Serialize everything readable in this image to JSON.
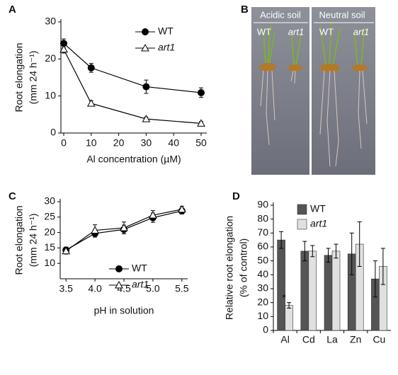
{
  "chart_data": [
    {
      "type": "line",
      "panel": "A",
      "xlabel": "Al concentration (µM)",
      "ylabel": [
        "Root elongation",
        "(mm 24 h⁻¹)"
      ],
      "x": [
        0,
        10,
        30,
        50
      ],
      "series": [
        {
          "name": "WT",
          "color": "#000000",
          "marker": "circle",
          "values": [
            24.2,
            17.6,
            12.5,
            10.9
          ],
          "errors": [
            1.2,
            1.2,
            1.8,
            1.3
          ]
        },
        {
          "name": "art1",
          "color": "#000000",
          "marker": "triangle",
          "values": [
            22.6,
            8.0,
            3.8,
            2.6
          ],
          "errors": [
            1.0,
            0.7,
            0.5,
            0.5
          ]
        }
      ],
      "xlim": [
        0,
        50
      ],
      "xticks": [
        0,
        10,
        20,
        30,
        40,
        50
      ],
      "ylim": [
        0,
        30
      ],
      "yticks": [
        0,
        10,
        20,
        30
      ],
      "legend": "upper right"
    },
    {
      "type": "image",
      "panel": "B",
      "labels": [
        "Acidic soil",
        "Neutral soil",
        "WT",
        "art1",
        "WT",
        "art1"
      ]
    },
    {
      "type": "line",
      "panel": "C",
      "xlabel": "pH in solution",
      "ylabel": [
        "Root elongation",
        "(mm 24 h⁻¹)"
      ],
      "x": [
        3.5,
        4.0,
        4.5,
        5.0,
        5.5
      ],
      "series": [
        {
          "name": "WT",
          "color": "#000000",
          "marker": "circle",
          "values": [
            14.3,
            19.7,
            21.0,
            24.8,
            27.0
          ],
          "errors": [
            1.0,
            1.2,
            1.4,
            1.5,
            1.0
          ]
        },
        {
          "name": "art1",
          "color": "#000000",
          "marker": "triangle",
          "values": [
            14.0,
            20.7,
            21.5,
            25.6,
            27.5
          ],
          "errors": [
            1.0,
            1.8,
            1.9,
            1.5,
            1.0
          ]
        }
      ],
      "xlim": [
        3.4,
        5.6
      ],
      "xticks": [
        {
          "value": 3.5,
          "label": "3.5"
        },
        {
          "value": 4,
          "label": "4.0"
        },
        {
          "value": 4.5,
          "label": "4.5"
        },
        {
          "value": 5,
          "label": "5.0"
        },
        {
          "value": 5.5,
          "label": "5.5"
        }
      ],
      "ylim": [
        5,
        30
      ],
      "yticks": [
        10,
        15,
        20,
        25,
        30
      ],
      "legend": "center right"
    },
    {
      "type": "bar",
      "panel": "D",
      "ylabel": [
        "Relative root elongation",
        "(% of control)"
      ],
      "categories": [
        "Al",
        "Cd",
        "La",
        "Zn",
        "Cu"
      ],
      "series": [
        {
          "name": "WT",
          "color": "#555555",
          "values": [
            65,
            57,
            54,
            55,
            37
          ],
          "errors": [
            6,
            7,
            5,
            15,
            13
          ]
        },
        {
          "name": "art1",
          "color": "#e0e0e0",
          "values": [
            18,
            57,
            57,
            62,
            46
          ],
          "errors": [
            2,
            4,
            5,
            16,
            13
          ]
        }
      ],
      "annotation": "*",
      "ylim": [
        0,
        90
      ],
      "yticks": [
        0,
        10,
        20,
        30,
        40,
        50,
        60,
        70,
        80,
        90
      ],
      "legend": "upper left"
    }
  ]
}
